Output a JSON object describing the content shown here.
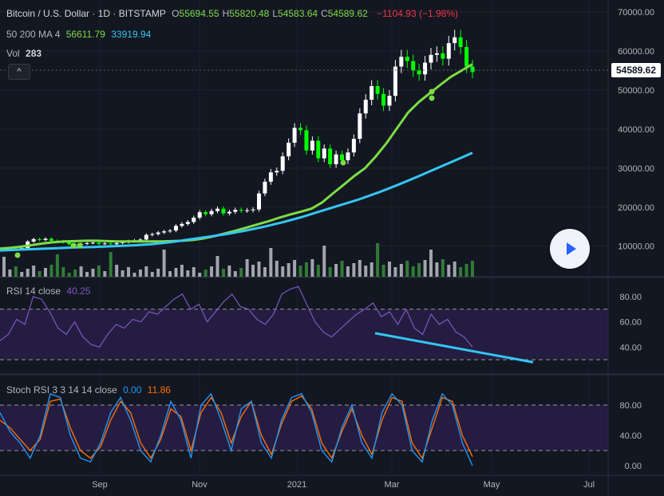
{
  "header": {
    "symbol": "Bitcoin / U.S. Dollar · 1D · BITSTAMP",
    "ohlc": [
      {
        "key": "O",
        "value": "55694.55"
      },
      {
        "key": "H",
        "value": "55820.48"
      },
      {
        "key": "L",
        "value": "54583.64"
      },
      {
        "key": "C",
        "value": "54589.62"
      }
    ],
    "change": "−1104.93 (−1.98%)"
  },
  "ma_legend": {
    "label": "50 200 MA 4",
    "ma50": "56611.79",
    "ma200": "33919.94"
  },
  "vol_legend": {
    "label": "Vol",
    "value": "283"
  },
  "collapse_glyph": "^",
  "last_price_label": "54589.62",
  "rsi_legend": {
    "label": "RSI 14 close",
    "value": "40.25"
  },
  "stoch_legend": {
    "label": "Stoch RSI 3 3 14 14 close",
    "k": "0.00",
    "d": "11.86"
  },
  "colors": {
    "background": "#131722",
    "grid": "#1e222d",
    "up": "#ffffff",
    "down": "#00ff00",
    "ma50": "#7ddc45",
    "ma200": "#35c6f2",
    "rsi": "#7e57c2",
    "rsi_band": "#2a1f4a",
    "stoch_k": "#2196f3",
    "stoch_d": "#ff6d00",
    "trendline": "#35c6f2",
    "dots": "#7ddc45"
  },
  "chart_data": [
    {
      "type": "candlestick",
      "pane": "price",
      "y_ticks": [
        "70000.00",
        "60000.00",
        "50000.00",
        "40000.00",
        "30000.00",
        "20000.00",
        "10000.00"
      ],
      "ylim": [
        3000,
        71000
      ],
      "x_ticks": [
        "Sep",
        "Nov",
        "2021",
        "Mar",
        "May",
        "Jul"
      ],
      "series": [
        {
          "name": "price",
          "values": [
            9200,
            9300,
            9100,
            9500,
            11200,
            11800,
            11600,
            11900,
            11400,
            11300,
            11000,
            10500,
            10400,
            10600,
            10800,
            10900,
            10600,
            10700,
            10500,
            10800,
            11000,
            11300,
            11500,
            11700,
            12900,
            13100,
            13500,
            13800,
            14000,
            15200,
            15700,
            16200,
            17300,
            18700,
            18200,
            19000,
            19600,
            18400,
            18800,
            19300,
            19100,
            19200,
            19400,
            23500,
            26500,
            28900,
            29300,
            33000,
            36500,
            40300,
            39700,
            34500,
            37000,
            32500,
            35000,
            31000,
            33500,
            32000,
            34000,
            37500,
            44000,
            47500,
            51000,
            49000,
            46000,
            48500,
            56000,
            58500,
            57400,
            55000,
            54000,
            57000,
            59000,
            59400,
            58000,
            62000,
            63500,
            61000,
            56000,
            54589
          ]
        },
        {
          "name": "MA 50",
          "values": [
            9400,
            9600,
            9900,
            10300,
            10700,
            11000,
            11200,
            11300,
            11400,
            11400,
            11300,
            11200,
            11200,
            11200,
            11200,
            11200,
            11300,
            11400,
            11600,
            12000,
            12600,
            13300,
            14000,
            14800,
            15600,
            16400,
            17300,
            18100,
            18800,
            19600,
            21200,
            23500,
            25700,
            28000,
            30000,
            33000,
            36400,
            40300,
            44200,
            46900,
            49100,
            51300,
            53400,
            55000,
            56600
          ]
        },
        {
          "name": "MA 200",
          "values": [
            8900,
            9100,
            9300,
            9500,
            9700,
            9800,
            10000,
            10200,
            10500,
            11000,
            11700,
            12400,
            13100,
            14000,
            15000,
            16200,
            17500,
            19000,
            20500,
            22000,
            23700,
            25600,
            27600,
            29700,
            31800,
            33919
          ]
        }
      ],
      "volume_legend": "283"
    },
    {
      "type": "line",
      "pane": "rsi",
      "y_ticks": [
        "80.00",
        "60.00",
        "40.00"
      ],
      "bands": [
        70,
        30
      ],
      "series": [
        {
          "name": "RSI 14 close",
          "values": [
            45,
            50,
            62,
            58,
            80,
            78,
            68,
            55,
            50,
            60,
            48,
            42,
            40,
            50,
            58,
            55,
            62,
            60,
            68,
            66,
            72,
            78,
            82,
            70,
            74,
            60,
            68,
            76,
            82,
            72,
            70,
            62,
            58,
            66,
            82,
            86,
            88,
            74,
            60,
            52,
            48,
            54,
            60,
            66,
            70,
            75,
            64,
            68,
            58,
            70,
            55,
            50,
            66,
            58,
            62,
            52,
            48,
            40
          ]
        }
      ],
      "trendline": {
        "from": 51,
        "to": 28
      }
    },
    {
      "type": "line",
      "pane": "stoch",
      "y_ticks": [
        "80.00",
        "40.00",
        "0.00"
      ],
      "bands": [
        80,
        20
      ],
      "series": [
        {
          "name": "K",
          "values": [
            70,
            45,
            30,
            10,
            40,
            95,
            90,
            40,
            10,
            5,
            30,
            70,
            90,
            60,
            20,
            5,
            40,
            85,
            60,
            10,
            80,
            95,
            60,
            20,
            75,
            85,
            30,
            10,
            60,
            90,
            95,
            70,
            20,
            5,
            50,
            80,
            30,
            10,
            70,
            95,
            80,
            20,
            5,
            60,
            95,
            80,
            30,
            0
          ]
        },
        {
          "name": "D",
          "values": [
            60,
            50,
            35,
            20,
            35,
            85,
            88,
            50,
            20,
            10,
            25,
            60,
            85,
            70,
            30,
            10,
            35,
            75,
            65,
            20,
            70,
            90,
            70,
            30,
            65,
            85,
            40,
            15,
            55,
            85,
            92,
            75,
            30,
            10,
            45,
            75,
            40,
            15,
            60,
            90,
            85,
            30,
            10,
            50,
            90,
            85,
            40,
            11.86
          ]
        }
      ]
    }
  ]
}
